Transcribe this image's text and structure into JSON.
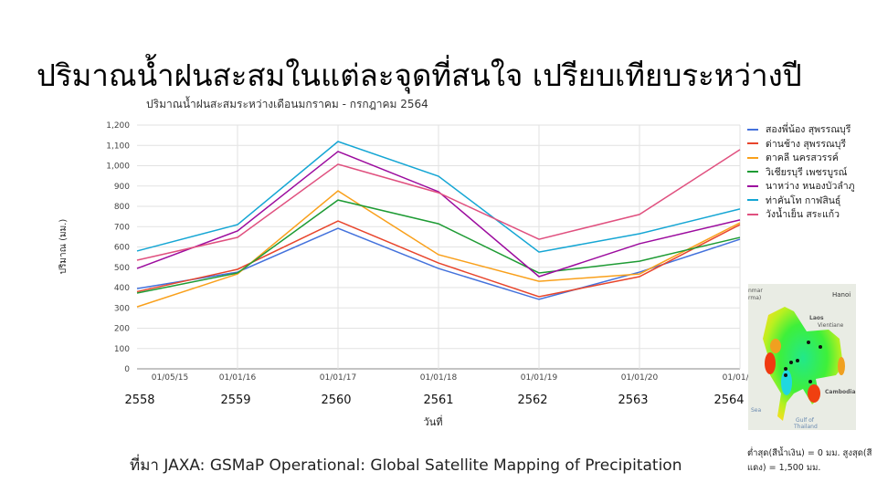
{
  "slide_title": "ปริมาณน้ำฝนสะสมในแต่ละจุดที่สนใจ เปรียบเทียบระหว่างปี",
  "source": "ที่มา JAXA: GSMaP Operational: Global Satellite Mapping of Precipitation",
  "map": {
    "labels": [
      "nmar",
      "rma)",
      "Laos",
      "Vientiane",
      "Hanoi",
      "Cambodia",
      "Gulf of",
      "Thailand",
      "Sea"
    ],
    "caption": "ต่ำสุด(สีน้ำเงิน) = 0 มม. สูงสุด(สีแดง) = 1,500 มม."
  },
  "chart_data": {
    "type": "line",
    "title": "ปริมาณน้ำฝนสะสมระหว่างเดือนมกราคม - กรกฎาคม 2564",
    "xlabel": "วันที่",
    "ylabel": "ปริมาณ (มม.)",
    "ylim": [
      0,
      1200
    ],
    "yticks": [
      "0",
      "100",
      "200",
      "300",
      "400",
      "500",
      "600",
      "700",
      "800",
      "900",
      "1,000",
      "1,100",
      "1,200"
    ],
    "date_ticks": [
      "01/05/15",
      "01/01/16",
      "01/01/17",
      "01/01/18",
      "01/01/19",
      "01/01/20",
      "01/01/2"
    ],
    "categories": [
      "2558",
      "2559",
      "2560",
      "2561",
      "2562",
      "2563",
      "2564"
    ],
    "grid": true,
    "legend_position": "right",
    "series": [
      {
        "name": "สองพี่น้อง สุพรรณบุรี",
        "color": "#4472dc",
        "values": [
          395,
          476,
          692,
          494,
          342,
          476,
          638
        ]
      },
      {
        "name": "ด่านช้าง สุพรรณบุรี",
        "color": "#e8452c",
        "values": [
          380,
          490,
          728,
          521,
          355,
          454,
          710
        ]
      },
      {
        "name": "ตาคลี นครสวรรค์",
        "color": "#f9a01b",
        "values": [
          305,
          467,
          876,
          562,
          431,
          467,
          719
        ]
      },
      {
        "name": "วิเชียรบุรี เพชรบูรณ์",
        "color": "#1e9b34",
        "values": [
          373,
          472,
          831,
          714,
          472,
          530,
          647
        ]
      },
      {
        "name": "นาหว่าง หนองบัวลำภู",
        "color": "#9c0b9e",
        "values": [
          494,
          679,
          1070,
          872,
          454,
          616,
          733
        ]
      },
      {
        "name": "ท่าคันโท กาฬสินธุ์",
        "color": "#15a6d4",
        "values": [
          580,
          710,
          1119,
          948,
          575,
          665,
          787
        ]
      },
      {
        "name": "วังน้ำเย็น สระแก้ว",
        "color": "#e0507f",
        "values": [
          535,
          647,
          1007,
          867,
          638,
          760,
          1079
        ]
      }
    ]
  }
}
